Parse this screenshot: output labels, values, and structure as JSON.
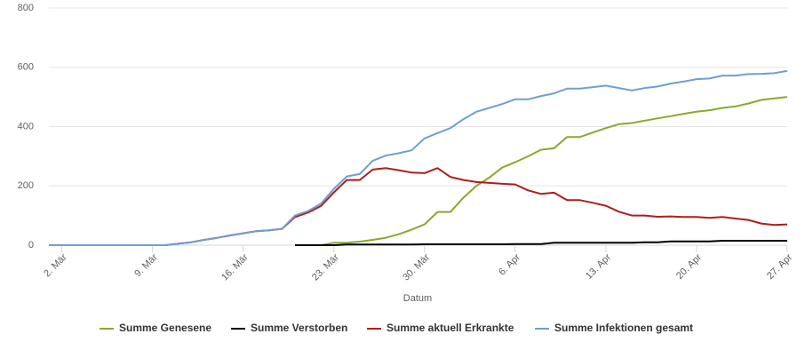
{
  "chart_data": {
    "type": "line",
    "xlabel": "Datum",
    "categories": [
      null,
      "2. Mär",
      null,
      null,
      null,
      null,
      null,
      null,
      "9. Mär",
      null,
      null,
      null,
      null,
      null,
      null,
      "16. Mär",
      null,
      null,
      null,
      null,
      null,
      null,
      "23. Mär",
      null,
      null,
      null,
      null,
      null,
      null,
      "30. Mär",
      null,
      null,
      null,
      null,
      null,
      null,
      "6. Apr",
      null,
      null,
      null,
      null,
      null,
      null,
      "13. Apr",
      null,
      null,
      null,
      null,
      null,
      null,
      "20. Apr",
      null,
      null,
      null,
      null,
      null,
      null,
      "27. Apr"
    ],
    "series": [
      {
        "name": "Summe Genesene",
        "color": "#8aa82d",
        "values": [
          null,
          null,
          null,
          null,
          null,
          null,
          null,
          null,
          null,
          null,
          null,
          null,
          null,
          null,
          null,
          null,
          null,
          null,
          null,
          null,
          null,
          0,
          8,
          8,
          12,
          18,
          25,
          37,
          52,
          70,
          112,
          112,
          160,
          200,
          228,
          262,
          280,
          300,
          322,
          327,
          365,
          365,
          380,
          395,
          408,
          412,
          420,
          428,
          435,
          443,
          450,
          455,
          463,
          468,
          478,
          490,
          495,
          500
        ]
      },
      {
        "name": "Summe Verstorben",
        "color": "#000000",
        "values": [
          null,
          null,
          null,
          null,
          null,
          null,
          null,
          null,
          null,
          null,
          null,
          null,
          null,
          null,
          null,
          null,
          null,
          null,
          null,
          0,
          0,
          0,
          0,
          2,
          2,
          2,
          2,
          2,
          2,
          3,
          3,
          3,
          3,
          3,
          3,
          3,
          4,
          4,
          4,
          8,
          8,
          8,
          8,
          8,
          8,
          8,
          10,
          10,
          13,
          13,
          13,
          13,
          15,
          15,
          15,
          15,
          15,
          15
        ]
      },
      {
        "name": "Summe aktuell Erkrankte",
        "color": "#b01c1c",
        "values": [
          0,
          0,
          0,
          0,
          0,
          0,
          0,
          0,
          0,
          0,
          5,
          10,
          18,
          25,
          33,
          40,
          47,
          50,
          55,
          95,
          110,
          132,
          178,
          220,
          220,
          255,
          260,
          253,
          245,
          243,
          260,
          230,
          220,
          213,
          210,
          207,
          205,
          185,
          173,
          177,
          152,
          152,
          143,
          133,
          113,
          100,
          100,
          96,
          97,
          95,
          95,
          92,
          95,
          90,
          85,
          73,
          68,
          70
        ]
      },
      {
        "name": "Summe Infektionen gesamt",
        "color": "#6f9fcf",
        "values": [
          0,
          0,
          0,
          0,
          0,
          0,
          0,
          0,
          0,
          0,
          5,
          10,
          18,
          25,
          33,
          40,
          47,
          50,
          55,
          100,
          115,
          140,
          190,
          232,
          240,
          285,
          302,
          310,
          320,
          360,
          378,
          395,
          425,
          450,
          463,
          476,
          492,
          492,
          503,
          512,
          528,
          528,
          533,
          538,
          530,
          522,
          530,
          535,
          545,
          552,
          560,
          562,
          572,
          572,
          577,
          578,
          580,
          588
        ]
      }
    ],
    "ylim": [
      0,
      800
    ],
    "yticks": [
      0,
      200,
      400,
      600,
      800
    ],
    "grid": true,
    "legend": "bottom"
  }
}
